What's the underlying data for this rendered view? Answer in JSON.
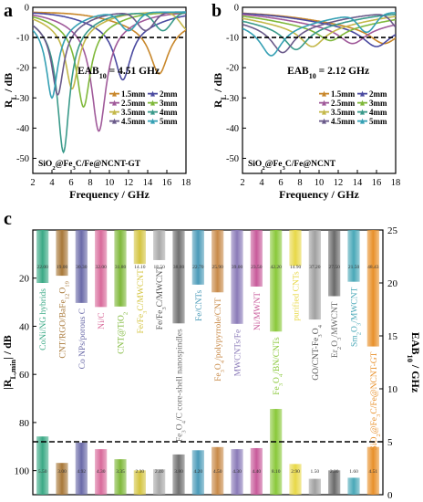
{
  "panel_letters": {
    "a": "a",
    "b": "b",
    "c": "c"
  },
  "legend_labels": [
    "1.5mm",
    "2mm",
    "2.5mm",
    "3mm",
    "3.5mm",
    "4mm",
    "4.5mm",
    "5mm"
  ],
  "legend_colors": [
    "#c8872a",
    "#4a4aa0",
    "#a05a9a",
    "#7fb83a",
    "#c4b84a",
    "#3a9a8a",
    "#6a5a8a",
    "#35a0b4"
  ],
  "chart_data": [
    {
      "type": "line",
      "panel": "a",
      "xlabel": "Frequency / GHz",
      "ylabel": "R_L / dB",
      "xlim": [
        2,
        18
      ],
      "ylim": [
        -55,
        0
      ],
      "xticks": [
        2,
        4,
        6,
        8,
        10,
        12,
        14,
        16,
        18
      ],
      "yticks": [
        0,
        -10,
        -20,
        -30,
        -40,
        -50
      ],
      "reference_line": -10,
      "annotation": "EAB10 = 4.51 GHz",
      "sample_label": "SiO2@Fe3C/Fe@NCNT-GT",
      "series": [
        {
          "name": "1.5mm",
          "dip_x": 15.2,
          "dip_y": -22
        },
        {
          "name": "2mm",
          "dip_x": 11.4,
          "dip_y": -24
        },
        {
          "name": "2.5mm",
          "dip_x": 8.9,
          "dip_y": -41
        },
        {
          "name": "3mm",
          "dip_x": 7.3,
          "dip_y": -33
        },
        {
          "name": "3.5mm",
          "dip_x": 6.1,
          "dip_y": -27
        },
        {
          "name": "4mm",
          "dip_x": 5.2,
          "dip_y": -48
        },
        {
          "name": "4.5mm",
          "dip_x": 4.6,
          "dip_y": -29
        },
        {
          "name": "5mm",
          "dip_x": 4.0,
          "dip_y": -30
        }
      ]
    },
    {
      "type": "line",
      "panel": "b",
      "xlabel": "Frequency / GHz",
      "ylabel": "R_L / dB",
      "xlim": [
        2,
        18
      ],
      "ylim": [
        -55,
        0
      ],
      "xticks": [
        2,
        4,
        6,
        8,
        10,
        12,
        14,
        16,
        18
      ],
      "yticks": [
        0,
        -10,
        -20,
        -30,
        -40,
        -50
      ],
      "reference_line": -10,
      "annotation": "EAB10 = 2.12 GHz",
      "sample_label": "SiO2@Fe3C/Fe@NCNT",
      "series": [
        {
          "name": "1.5mm",
          "dip_x": 16.8,
          "dip_y": -12
        },
        {
          "name": "2mm",
          "dip_x": 16.0,
          "dip_y": -13
        },
        {
          "name": "2.5mm",
          "dip_x": 13.5,
          "dip_y": -12
        },
        {
          "name": "3mm",
          "dip_x": 11.2,
          "dip_y": -11
        },
        {
          "name": "3.5mm",
          "dip_x": 9.3,
          "dip_y": -13
        },
        {
          "name": "4mm",
          "dip_x": 7.6,
          "dip_y": -14
        },
        {
          "name": "4.5mm",
          "dip_x": 6.2,
          "dip_y": -15
        },
        {
          "name": "5mm",
          "dip_x": 5.0,
          "dip_y": -16
        }
      ]
    },
    {
      "type": "bar",
      "panel": "c",
      "ylabel_left": "|R_L,min| / dB",
      "ylabel_right": "EAB10 / GHz",
      "left_ylim": [
        0,
        110
      ],
      "left_yticks": [
        20,
        40,
        60,
        80,
        100
      ],
      "right_ylim": [
        0,
        25
      ],
      "right_yticks": [
        0,
        5,
        10,
        15,
        20,
        25
      ],
      "reference_line_eab": 5,
      "categories": [
        "CoNi/NG hybrids",
        "CNT/RGO/BaFe12O19",
        "Co NPs/porous C",
        "Ni/C",
        "CNT@TiO2",
        "Fe/Fe3C/MWCNT",
        "Fe/Fe3C/MWCNT",
        "Fe3O4/C core-shell nanospindles",
        "Fe/CNTs",
        "Fe3O4/polypyrrole/CNT",
        "MWCNTs/Fe",
        "Ni/MWNT",
        "Fe3O4/BN/CNTs",
        "purified CNTs",
        "GO/CNT-Fe3O4",
        "Er2O3/MWCNT",
        "Sm2O3/MWCNT",
        "SiO2@Fe3C/Fe@NCNT-GT"
      ],
      "rl_min_values": [
        22.0,
        19.0,
        30.3,
        32.0,
        31.8,
        14.1,
        12.5,
        38.8,
        22.7,
        25.9,
        39.0,
        23.5,
        42.2,
        14.9,
        37.2,
        27.5,
        21.5,
        48.4
      ],
      "rl_min_labels": [
        "22.00",
        "19.00",
        "30.30",
        "32.00",
        "31.80",
        "14.10",
        "12.50",
        "38.80",
        "22.70",
        "25.90",
        "39.00",
        "23.50",
        "42.20",
        "14.90",
        "37.20",
        "27.50",
        "21.50",
        "48.43"
      ],
      "eab_values": [
        5.5,
        3.0,
        4.92,
        4.3,
        3.35,
        2.3,
        2.4,
        3.8,
        4.2,
        4.5,
        4.3,
        4.4,
        8.1,
        2.9,
        1.5,
        2.3,
        1.6,
        4.51
      ],
      "eab_labels": [
        "5.50",
        "3.00",
        "4.92",
        "4.30",
        "3.35",
        "2.30",
        "2.40",
        "3.80",
        "4.20",
        "4.50",
        "4.30",
        "4.40",
        "8.10",
        "2.90",
        "1.50",
        "2.30",
        "1.60",
        "4.51"
      ],
      "bar_colors": [
        "#3aa985",
        "#a87838",
        "#6a6aa8",
        "#d86a9a",
        "#7fb83a",
        "#d4c440",
        "#a8a8a8",
        "#707070",
        "#4a9ab8",
        "#c88a48",
        "#8a7ab8",
        "#c85a9a",
        "#8ac83a",
        "#e8d848",
        "#a0a0a0",
        "#6a6a6a",
        "#4aa8b8",
        "#e8902a"
      ]
    }
  ]
}
